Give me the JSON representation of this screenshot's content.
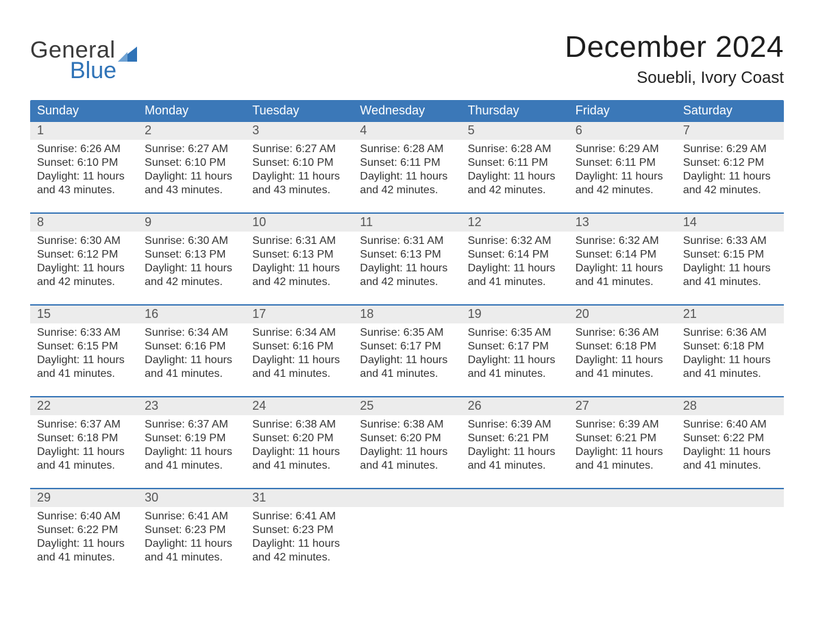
{
  "brand": {
    "line1": "General",
    "line2": "Blue",
    "sail_color": "#2f73b7",
    "text_color": "#3a3a3a"
  },
  "title": {
    "month": "December 2024",
    "location": "Souebli, Ivory Coast"
  },
  "colors": {
    "header_blue": "#3b78b8",
    "row_bg": "#ececec",
    "separator": "#3b78b8",
    "text": "#333333"
  },
  "labels": {
    "sunrise_prefix": "Sunrise: ",
    "sunset_prefix": "Sunset: ",
    "daylight_prefix": "Daylight: "
  },
  "days_of_week": [
    "Sunday",
    "Monday",
    "Tuesday",
    "Wednesday",
    "Thursday",
    "Friday",
    "Saturday"
  ],
  "weeks": [
    [
      {
        "n": "1",
        "sunrise": "6:26 AM",
        "sunset": "6:10 PM",
        "daylight": "11 hours and 43 minutes."
      },
      {
        "n": "2",
        "sunrise": "6:27 AM",
        "sunset": "6:10 PM",
        "daylight": "11 hours and 43 minutes."
      },
      {
        "n": "3",
        "sunrise": "6:27 AM",
        "sunset": "6:10 PM",
        "daylight": "11 hours and 43 minutes."
      },
      {
        "n": "4",
        "sunrise": "6:28 AM",
        "sunset": "6:11 PM",
        "daylight": "11 hours and 42 minutes."
      },
      {
        "n": "5",
        "sunrise": "6:28 AM",
        "sunset": "6:11 PM",
        "daylight": "11 hours and 42 minutes."
      },
      {
        "n": "6",
        "sunrise": "6:29 AM",
        "sunset": "6:11 PM",
        "daylight": "11 hours and 42 minutes."
      },
      {
        "n": "7",
        "sunrise": "6:29 AM",
        "sunset": "6:12 PM",
        "daylight": "11 hours and 42 minutes."
      }
    ],
    [
      {
        "n": "8",
        "sunrise": "6:30 AM",
        "sunset": "6:12 PM",
        "daylight": "11 hours and 42 minutes."
      },
      {
        "n": "9",
        "sunrise": "6:30 AM",
        "sunset": "6:13 PM",
        "daylight": "11 hours and 42 minutes."
      },
      {
        "n": "10",
        "sunrise": "6:31 AM",
        "sunset": "6:13 PM",
        "daylight": "11 hours and 42 minutes."
      },
      {
        "n": "11",
        "sunrise": "6:31 AM",
        "sunset": "6:13 PM",
        "daylight": "11 hours and 42 minutes."
      },
      {
        "n": "12",
        "sunrise": "6:32 AM",
        "sunset": "6:14 PM",
        "daylight": "11 hours and 41 minutes."
      },
      {
        "n": "13",
        "sunrise": "6:32 AM",
        "sunset": "6:14 PM",
        "daylight": "11 hours and 41 minutes."
      },
      {
        "n": "14",
        "sunrise": "6:33 AM",
        "sunset": "6:15 PM",
        "daylight": "11 hours and 41 minutes."
      }
    ],
    [
      {
        "n": "15",
        "sunrise": "6:33 AM",
        "sunset": "6:15 PM",
        "daylight": "11 hours and 41 minutes."
      },
      {
        "n": "16",
        "sunrise": "6:34 AM",
        "sunset": "6:16 PM",
        "daylight": "11 hours and 41 minutes."
      },
      {
        "n": "17",
        "sunrise": "6:34 AM",
        "sunset": "6:16 PM",
        "daylight": "11 hours and 41 minutes."
      },
      {
        "n": "18",
        "sunrise": "6:35 AM",
        "sunset": "6:17 PM",
        "daylight": "11 hours and 41 minutes."
      },
      {
        "n": "19",
        "sunrise": "6:35 AM",
        "sunset": "6:17 PM",
        "daylight": "11 hours and 41 minutes."
      },
      {
        "n": "20",
        "sunrise": "6:36 AM",
        "sunset": "6:18 PM",
        "daylight": "11 hours and 41 minutes."
      },
      {
        "n": "21",
        "sunrise": "6:36 AM",
        "sunset": "6:18 PM",
        "daylight": "11 hours and 41 minutes."
      }
    ],
    [
      {
        "n": "22",
        "sunrise": "6:37 AM",
        "sunset": "6:18 PM",
        "daylight": "11 hours and 41 minutes."
      },
      {
        "n": "23",
        "sunrise": "6:37 AM",
        "sunset": "6:19 PM",
        "daylight": "11 hours and 41 minutes."
      },
      {
        "n": "24",
        "sunrise": "6:38 AM",
        "sunset": "6:20 PM",
        "daylight": "11 hours and 41 minutes."
      },
      {
        "n": "25",
        "sunrise": "6:38 AM",
        "sunset": "6:20 PM",
        "daylight": "11 hours and 41 minutes."
      },
      {
        "n": "26",
        "sunrise": "6:39 AM",
        "sunset": "6:21 PM",
        "daylight": "11 hours and 41 minutes."
      },
      {
        "n": "27",
        "sunrise": "6:39 AM",
        "sunset": "6:21 PM",
        "daylight": "11 hours and 41 minutes."
      },
      {
        "n": "28",
        "sunrise": "6:40 AM",
        "sunset": "6:22 PM",
        "daylight": "11 hours and 41 minutes."
      }
    ],
    [
      {
        "n": "29",
        "sunrise": "6:40 AM",
        "sunset": "6:22 PM",
        "daylight": "11 hours and 41 minutes."
      },
      {
        "n": "30",
        "sunrise": "6:41 AM",
        "sunset": "6:23 PM",
        "daylight": "11 hours and 41 minutes."
      },
      {
        "n": "31",
        "sunrise": "6:41 AM",
        "sunset": "6:23 PM",
        "daylight": "11 hours and 42 minutes."
      },
      null,
      null,
      null,
      null
    ]
  ]
}
